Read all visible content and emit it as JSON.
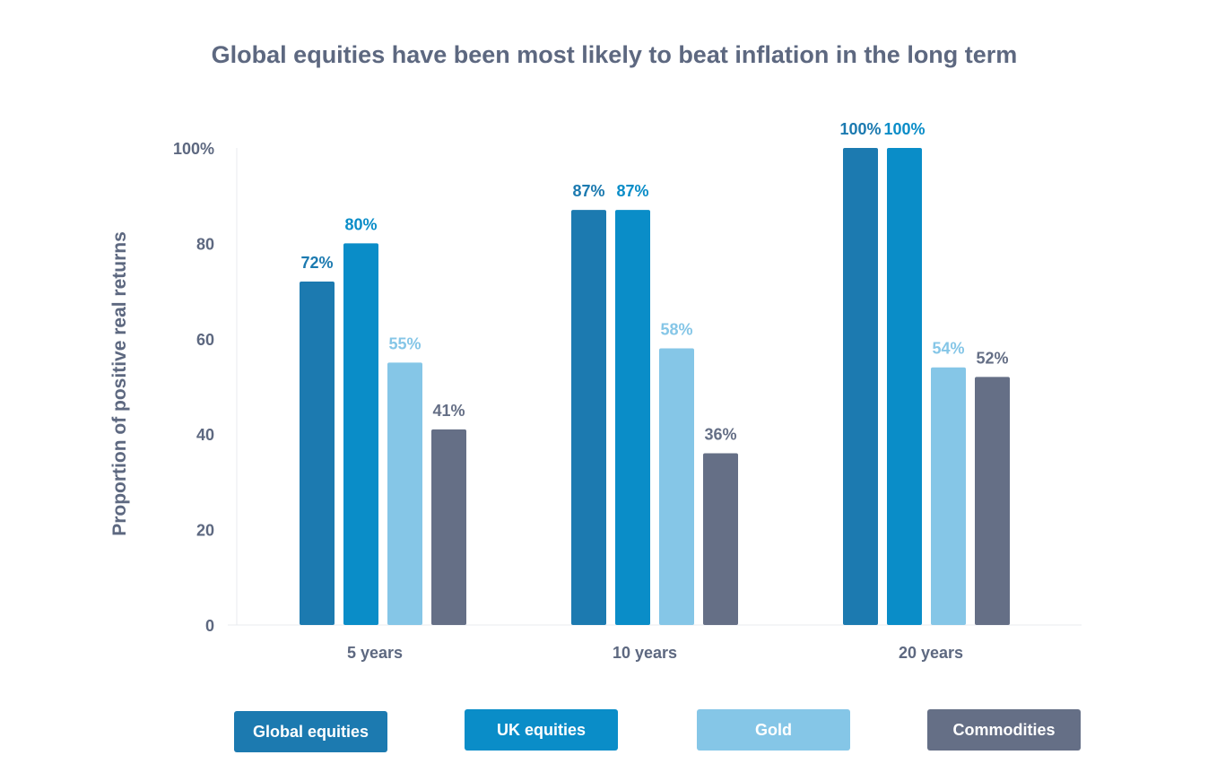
{
  "chart_data": {
    "type": "bar",
    "title": "Global equities have been most likely to beat inflation in the long term",
    "xlabel": "",
    "ylabel": "Proportion of positive real returns",
    "ylim": [
      0,
      100
    ],
    "yticks": [
      "0",
      "20",
      "40",
      "60",
      "80",
      "100%"
    ],
    "ytick_values": [
      0,
      20,
      40,
      60,
      80,
      100
    ],
    "categories": [
      "5 years",
      "10 years",
      "20 years"
    ],
    "series": [
      {
        "name": "Global equities",
        "values": [
          72,
          87,
          100
        ],
        "labels": [
          "72%",
          "87%",
          "100%"
        ],
        "color": "#1c7ab0",
        "label_color": "#1c7ab0"
      },
      {
        "name": "UK equities",
        "values": [
          80,
          87,
          100
        ],
        "labels": [
          "80%",
          "87%",
          "100%"
        ],
        "color": "#0a8dc8",
        "label_color": "#0a8dc8"
      },
      {
        "name": "Gold",
        "values": [
          55,
          58,
          54
        ],
        "labels": [
          "55%",
          "58%",
          "54%"
        ],
        "color": "#85c6e7",
        "label_color": "#85c6e7"
      },
      {
        "name": "Commodities",
        "values": [
          41,
          36,
          52
        ],
        "labels": [
          "41%",
          "36%",
          "52%"
        ],
        "color": "#656f86",
        "label_color": "#656f86"
      }
    ],
    "grid": false,
    "legend_position": "bottom"
  }
}
